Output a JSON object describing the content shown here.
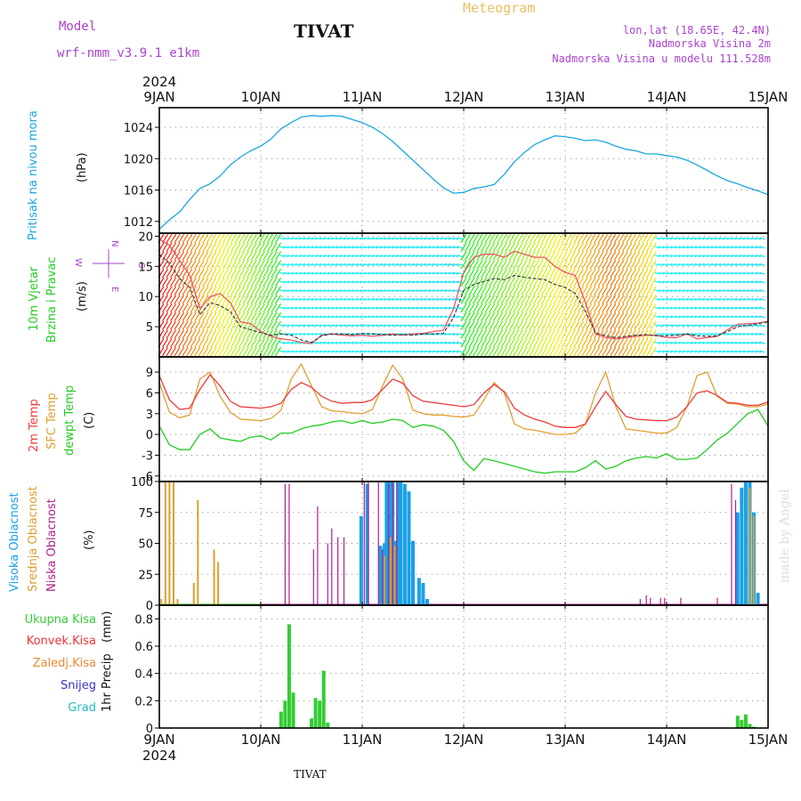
{
  "header": {
    "model_label": "Model",
    "model_name": "wrf-nmm_v3.9.1 e1km",
    "station": "TIVAT",
    "meteogram_label": "Meteogram",
    "lonlat": "lon,lat (18.65E, 42.4N)",
    "elevation": "Nadmorska Visina 2m",
    "model_elevation": "Nadmorska Visina u modelu 111.528m",
    "footer_station": "TIVAT",
    "credit": "made by Angel"
  },
  "colors": {
    "pressure": "#1aa7e0",
    "t2m": "#ee3b3b",
    "tsfc": "#e0a030",
    "dewpt": "#22cc22",
    "cloud_high": "#1aa0e8",
    "cloud_mid": "#d9a030",
    "cloud_low": "#b0208a",
    "precip_total": "#33cc33",
    "precip_conv": "#ee3333",
    "precip_frozen": "#ee8833",
    "precip_snow": "#3333cc",
    "precip_hail": "#22bbbb",
    "wind_speed": "#333333",
    "wind_max": "#ee5566",
    "model_text": "#aa44cc",
    "meteogram_text": "#e8c060"
  },
  "time_axis": {
    "year": "2024",
    "labels": [
      "9JAN",
      "10JAN",
      "11JAN",
      "12JAN",
      "13JAN",
      "14JAN",
      "15JAN"
    ]
  },
  "chart_data": [
    {
      "type": "line",
      "ylabel_left": "Pritisak na nivou mora",
      "unit": "(hPa)",
      "yticks": [
        "1012",
        "1016",
        "1020",
        "1024"
      ],
      "ylim": [
        1010.5,
        1026.5
      ],
      "x_days": [
        0,
        0.1,
        0.2,
        0.3,
        0.4,
        0.5,
        0.6,
        0.7,
        0.8,
        0.9,
        1.0,
        1.1,
        1.2,
        1.3,
        1.4,
        1.5,
        1.6,
        1.7,
        1.8,
        1.9,
        2.0,
        2.1,
        2.2,
        2.3,
        2.4,
        2.5,
        2.6,
        2.7,
        2.8,
        2.9,
        3.0,
        3.1,
        3.2,
        3.3,
        3.4,
        3.5,
        3.6,
        3.7,
        3.8,
        3.9,
        4.0,
        4.1,
        4.2,
        4.3,
        4.4,
        4.5,
        4.6,
        4.7,
        4.8,
        4.9,
        5.0,
        5.1,
        5.2,
        5.3,
        5.4,
        5.5,
        5.6,
        5.7,
        5.8,
        5.9,
        6.0
      ],
      "values": [
        1011.0,
        1012.2,
        1013.2,
        1014.8,
        1016.2,
        1016.8,
        1017.8,
        1019.2,
        1020.2,
        1021.0,
        1021.6,
        1022.5,
        1023.8,
        1024.6,
        1025.3,
        1025.5,
        1025.4,
        1025.5,
        1025.4,
        1025.0,
        1024.6,
        1024.0,
        1023.2,
        1022.2,
        1021.0,
        1019.8,
        1018.6,
        1017.4,
        1016.3,
        1015.6,
        1015.7,
        1016.2,
        1016.4,
        1016.7,
        1018.0,
        1019.6,
        1020.8,
        1021.8,
        1022.4,
        1022.9,
        1022.8,
        1022.6,
        1022.3,
        1022.4,
        1022.1,
        1021.6,
        1021.2,
        1021.0,
        1020.6,
        1020.6,
        1020.4,
        1020.2,
        1019.8,
        1019.2,
        1018.5,
        1017.8,
        1017.2,
        1016.8,
        1016.3,
        1015.9,
        1015.4
      ]
    },
    {
      "type": "line",
      "ylabel_left": "10m Vjetar",
      "ylabel_left2": "Brzina i Pravac",
      "unit": "(m/s)",
      "compass": [
        "N",
        "E",
        "S",
        "W"
      ],
      "yticks": [
        "5",
        "10",
        "15",
        "20"
      ],
      "ylim": [
        0,
        20.5
      ],
      "x_days": [
        0,
        0.1,
        0.2,
        0.3,
        0.4,
        0.5,
        0.6,
        0.7,
        0.8,
        0.9,
        1.0,
        1.1,
        1.2,
        1.3,
        1.4,
        1.5,
        1.6,
        1.7,
        1.8,
        1.9,
        2.0,
        2.1,
        2.2,
        2.3,
        2.4,
        2.5,
        2.6,
        2.7,
        2.8,
        2.9,
        3.0,
        3.1,
        3.2,
        3.3,
        3.4,
        3.5,
        3.6,
        3.7,
        3.8,
        3.9,
        4.0,
        4.1,
        4.2,
        4.3,
        4.4,
        4.5,
        4.6,
        4.7,
        4.8,
        4.9,
        5.0,
        5.1,
        5.2,
        5.3,
        5.4,
        5.5,
        5.6,
        5.7,
        5.8,
        5.9,
        6.0
      ],
      "speed": [
        17.0,
        15.5,
        13.0,
        11.5,
        7.0,
        9.0,
        8.5,
        7.5,
        5.0,
        4.5,
        4.0,
        3.6,
        3.8,
        3.6,
        2.8,
        2.4,
        3.5,
        3.8,
        3.8,
        3.7,
        3.9,
        3.8,
        3.7,
        3.6,
        3.7,
        3.6,
        3.8,
        3.8,
        3.9,
        6.5,
        11.0,
        12.0,
        12.5,
        13.0,
        12.8,
        13.5,
        13.2,
        13.0,
        12.8,
        12.0,
        11.5,
        10.5,
        7.5,
        4.0,
        3.5,
        3.2,
        3.4,
        3.6,
        3.7,
        3.5,
        3.5,
        3.6,
        3.8,
        3.5,
        3.4,
        3.5,
        4.2,
        5.0,
        5.2,
        5.5,
        5.8
      ],
      "gust": [
        19.5,
        18.5,
        16.0,
        13.5,
        8.0,
        10.0,
        10.5,
        9.0,
        5.8,
        5.5,
        4.2,
        3.4,
        3.0,
        2.8,
        2.4,
        2.2,
        3.6,
        3.8,
        3.6,
        3.5,
        3.6,
        3.4,
        3.6,
        3.8,
        3.6,
        3.8,
        3.9,
        4.2,
        4.4,
        8.0,
        14.0,
        16.5,
        17.0,
        17.0,
        16.5,
        17.5,
        17.0,
        16.5,
        16.5,
        15.0,
        14.0,
        13.5,
        9.0,
        3.8,
        3.2,
        3.0,
        3.2,
        3.4,
        3.6,
        3.6,
        3.2,
        3.2,
        3.8,
        3.0,
        3.2,
        3.4,
        4.5,
        5.4,
        5.5,
        5.6,
        5.9
      ]
    },
    {
      "type": "line",
      "ylabel_left": "2m Temp",
      "ylabel_left2": "SFC Temp",
      "ylabel_left3": "dewpt Temp",
      "unit": "(C)",
      "yticks": [
        "-6",
        "-3",
        "0",
        "3",
        "6",
        "9"
      ],
      "ylim": [
        -6.8,
        11.2
      ],
      "x_days": [
        0,
        0.1,
        0.2,
        0.3,
        0.4,
        0.5,
        0.6,
        0.7,
        0.8,
        0.9,
        1.0,
        1.1,
        1.2,
        1.3,
        1.4,
        1.5,
        1.6,
        1.7,
        1.8,
        1.9,
        2.0,
        2.1,
        2.2,
        2.3,
        2.4,
        2.5,
        2.6,
        2.7,
        2.8,
        2.9,
        3.0,
        3.1,
        3.2,
        3.3,
        3.4,
        3.5,
        3.6,
        3.7,
        3.8,
        3.9,
        4.0,
        4.1,
        4.2,
        4.3,
        4.4,
        4.5,
        4.6,
        4.7,
        4.8,
        4.9,
        5.0,
        5.1,
        5.2,
        5.3,
        5.4,
        5.5,
        5.6,
        5.7,
        5.8,
        5.9,
        6.0
      ],
      "t2m": [
        8.5,
        5.0,
        3.6,
        3.8,
        6.5,
        8.6,
        7.0,
        4.8,
        4.0,
        3.9,
        3.8,
        4.0,
        4.5,
        6.5,
        7.5,
        6.8,
        5.5,
        4.8,
        4.5,
        4.6,
        4.6,
        5.0,
        6.5,
        8.0,
        7.4,
        5.6,
        4.8,
        4.6,
        4.4,
        4.2,
        4.0,
        4.3,
        6.0,
        7.2,
        6.2,
        3.8,
        2.8,
        2.2,
        1.8,
        1.2,
        1.0,
        1.0,
        1.5,
        4.0,
        6.2,
        4.3,
        2.6,
        2.2,
        2.1,
        2.0,
        2.0,
        2.5,
        4.0,
        6.0,
        6.3,
        5.6,
        4.6,
        4.5,
        4.2,
        4.2,
        4.7
      ],
      "tsfc": [
        7.5,
        3.2,
        2.4,
        2.8,
        8.0,
        9.0,
        5.5,
        3.2,
        2.2,
        2.1,
        2.0,
        2.3,
        3.5,
        8.0,
        10.2,
        7.0,
        4.0,
        3.4,
        3.3,
        3.1,
        3.0,
        3.6,
        7.0,
        10.0,
        8.0,
        3.5,
        3.0,
        2.8,
        2.8,
        2.6,
        2.5,
        2.8,
        5.0,
        7.5,
        6.0,
        1.5,
        0.8,
        0.6,
        0.3,
        0.0,
        0.0,
        0.2,
        1.5,
        6.0,
        9.0,
        4.0,
        0.8,
        0.6,
        0.4,
        0.2,
        0.2,
        1.0,
        4.0,
        8.5,
        9.0,
        5.5,
        4.5,
        4.4,
        4.0,
        4.0,
        4.4
      ],
      "dewpt": [
        1.2,
        -1.5,
        -2.2,
        -2.2,
        0.0,
        0.8,
        -0.5,
        -0.8,
        -1.0,
        -0.4,
        -0.2,
        -0.8,
        0.2,
        0.2,
        0.8,
        1.2,
        1.4,
        1.8,
        2.0,
        1.6,
        2.0,
        1.6,
        1.8,
        2.2,
        2.0,
        1.0,
        1.4,
        1.2,
        0.6,
        -1.0,
        -3.8,
        -5.2,
        -3.5,
        -3.8,
        -4.2,
        -4.6,
        -5.0,
        -5.4,
        -5.6,
        -5.4,
        -5.4,
        -5.4,
        -4.8,
        -3.8,
        -5.0,
        -4.6,
        -3.8,
        -3.4,
        -3.2,
        -3.4,
        -2.8,
        -3.6,
        -3.6,
        -3.4,
        -2.2,
        -0.8,
        0.2,
        1.6,
        3.0,
        3.6,
        1.2
      ]
    },
    {
      "type": "bar",
      "ylabel_left": "Visoka Oblacnost",
      "ylabel_left2": "Srednja Oblacnost",
      "ylabel_left3": "Niska Oblacnost",
      "unit": "(%)",
      "yticks": [
        "0",
        "25",
        "50",
        "75",
        "100"
      ],
      "ylim": [
        0,
        100
      ],
      "high": {
        "x": [
          1.99,
          2.05,
          2.18,
          2.22,
          2.24,
          2.26,
          2.28,
          2.3,
          2.32,
          2.34,
          2.36,
          2.38,
          2.42,
          2.46,
          2.5,
          2.56,
          2.6,
          2.64,
          5.7,
          5.74,
          5.78,
          5.82,
          5.86,
          5.9
        ],
        "values": [
          72,
          98,
          48,
          50,
          100,
          100,
          100,
          100,
          52,
          50,
          100,
          100,
          98,
          92,
          52,
          22,
          18,
          5,
          75,
          95,
          100,
          100,
          75,
          10
        ]
      },
      "mid": {
        "x": [
          0.02,
          0.06,
          0.1,
          0.14,
          0.18,
          0.34,
          0.38,
          0.54,
          0.58,
          2.22,
          2.28,
          2.32,
          5.82,
          5.86
        ],
        "values": [
          5,
          100,
          100,
          100,
          5,
          18,
          85,
          45,
          35,
          40,
          55,
          48,
          95,
          72
        ]
      },
      "low": {
        "x": [
          1.24,
          1.28,
          1.52,
          1.56,
          1.66,
          1.7,
          1.76,
          1.82,
          2.02,
          2.06,
          2.16,
          2.2,
          2.26,
          2.3,
          2.34,
          4.74,
          4.8,
          4.84,
          4.94,
          4.98,
          5.14,
          5.5,
          5.64,
          5.68
        ],
        "values": [
          98,
          98,
          45,
          80,
          50,
          62,
          55,
          55,
          100,
          100,
          100,
          45,
          98,
          100,
          100,
          5,
          8,
          6,
          6,
          6,
          6,
          6,
          98,
          85
        ]
      }
    },
    {
      "type": "bar",
      "legend": [
        "Ukupna Kisa",
        "Konvek.Kisa",
        "Zaledj.Kisa",
        "Snijeg",
        "Grad"
      ],
      "ylabel_left": "1hr Precip",
      "unit": "(mm)",
      "yticks": [
        "0",
        "0.2",
        "0.4",
        "0.6",
        "0.8"
      ],
      "ylim": [
        0,
        0.9
      ],
      "total": {
        "x": [
          1.2,
          1.24,
          1.28,
          1.32,
          1.5,
          1.54,
          1.58,
          1.62,
          1.66,
          5.7,
          5.74,
          5.78,
          5.82,
          5.86
        ],
        "values": [
          0.12,
          0.2,
          0.76,
          0.26,
          0.07,
          0.22,
          0.2,
          0.42,
          0.04,
          0.09,
          0.06,
          0.1,
          0.03,
          0.01
        ]
      }
    }
  ]
}
